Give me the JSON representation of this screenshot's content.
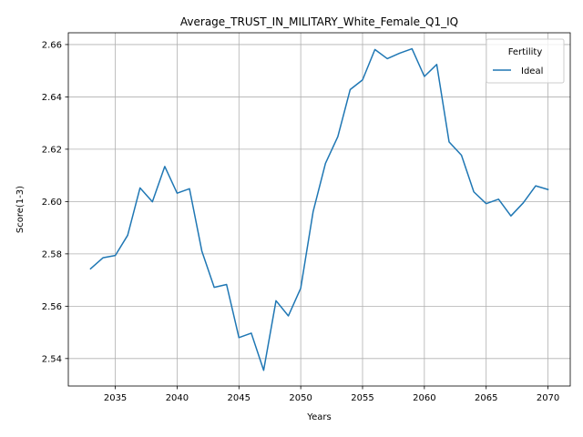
{
  "chart_data": {
    "type": "line",
    "title": "Average_TRUST_IN_MILITARY_White_Female_Q1_IQ",
    "xlabel": "Years",
    "ylabel": "Score(1-3)",
    "xlim": [
      2031.2,
      2071.8
    ],
    "ylim": [
      2.5295,
      2.6645
    ],
    "x_ticks": [
      2035,
      2040,
      2045,
      2050,
      2055,
      2060,
      2065,
      2070
    ],
    "y_ticks": [
      2.54,
      2.56,
      2.58,
      2.6,
      2.62,
      2.64,
      2.66
    ],
    "y_tick_labels": [
      "2.54",
      "2.56",
      "2.58",
      "2.60",
      "2.62",
      "2.64",
      "2.66"
    ],
    "grid": true,
    "legend": {
      "title": "Fertility",
      "placement": "upper right"
    },
    "series": [
      {
        "name": "Ideal",
        "color": "#1f77b4",
        "x": [
          2033,
          2034,
          2035,
          2036,
          2037,
          2038,
          2039,
          2040,
          2041,
          2042,
          2043,
          2044,
          2045,
          2046,
          2047,
          2048,
          2049,
          2050,
          2051,
          2052,
          2053,
          2054,
          2055,
          2056,
          2057,
          2058,
          2059,
          2060,
          2061,
          2062,
          2063,
          2064,
          2065,
          2066,
          2067,
          2068,
          2069,
          2070
        ],
        "values": [
          2.5743,
          2.5785,
          2.5794,
          2.5871,
          2.6052,
          2.5999,
          2.6134,
          2.6032,
          2.6049,
          2.5811,
          2.5672,
          2.5683,
          2.548,
          2.5497,
          2.5355,
          2.5621,
          2.5563,
          2.5669,
          2.5961,
          2.6146,
          2.6248,
          2.6428,
          2.6465,
          2.6581,
          2.6546,
          2.6567,
          2.6584,
          2.6478,
          2.6524,
          2.6228,
          2.6177,
          2.6037,
          2.5992,
          2.6009,
          2.5945,
          2.5995,
          2.606,
          2.6046
        ]
      }
    ]
  }
}
